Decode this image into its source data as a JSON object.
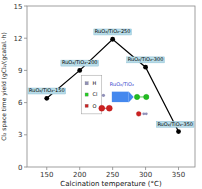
{
  "chart_data": {
    "type": "line",
    "xlabel": "Calcination temperature (°C)",
    "ylabel": "Cl₂ space time yield (gCl₂/(gcatal.·h)",
    "x": [
      150,
      200,
      250,
      300,
      350
    ],
    "series": [
      {
        "name": "RuO₂/TiO₂",
        "color": "black",
        "marker": "circle",
        "values": [
          6.4,
          9.0,
          11.9,
          9.3,
          3.3
        ],
        "point_labels": [
          "RuO₂/TiO₂-150",
          "RuO₂/TiO₂-200",
          "RuO₂/TiO₂-250",
          "RuO₂/TiO₂-300",
          "RuO₂/TiO₂-350"
        ]
      }
    ],
    "annotations": [
      "RuO₂/TiO₂",
      "H",
      "Cl",
      "O"
    ],
    "xlim": [
      120,
      375
    ],
    "ylim": [
      0,
      15
    ],
    "xticks": [
      150,
      200,
      250,
      300,
      350
    ],
    "yticks": [
      0,
      3,
      6,
      9,
      12,
      15
    ],
    "grid": false
  }
}
